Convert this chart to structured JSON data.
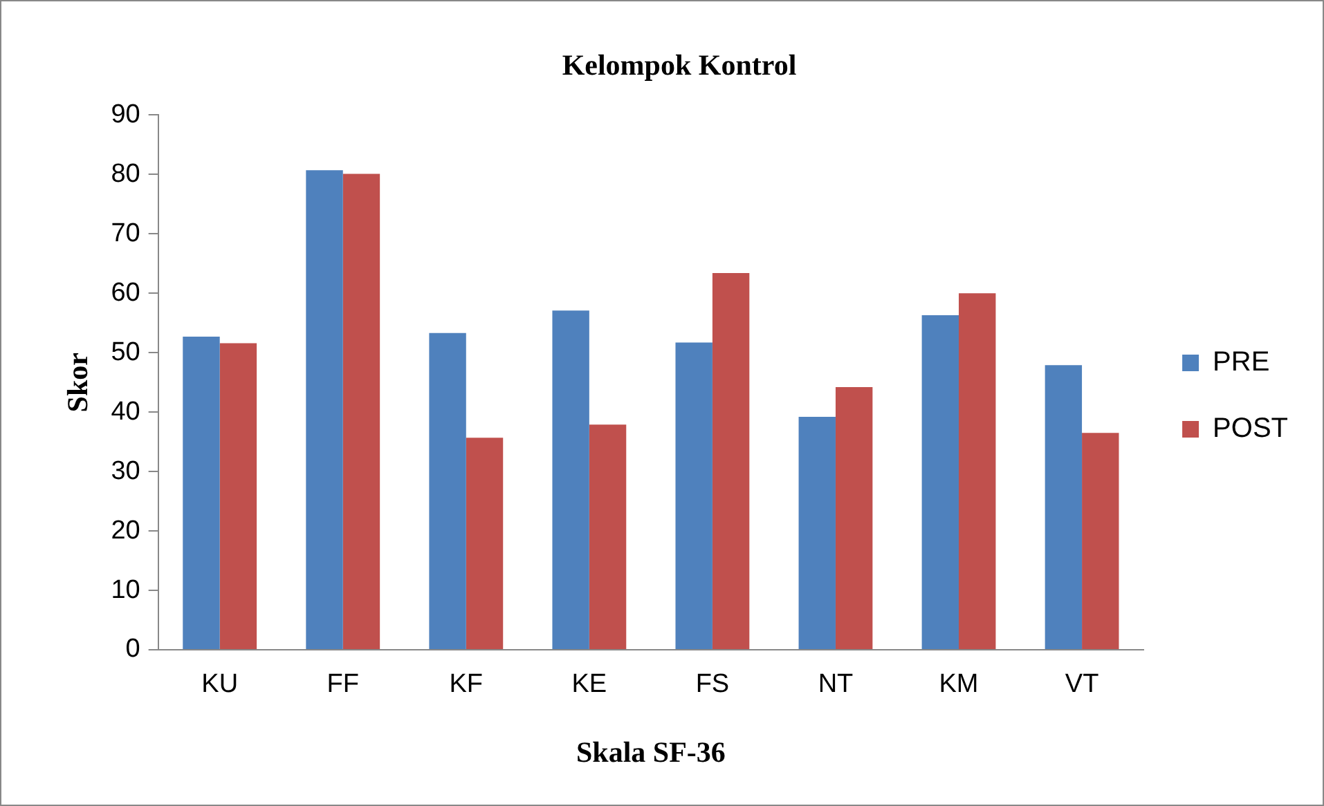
{
  "chart_data": {
    "type": "bar",
    "title": "Kelompok Kontrol",
    "xlabel": "Skala SF-36",
    "ylabel": "Skor",
    "categories": [
      "KU",
      "FF",
      "KF",
      "KE",
      "FS",
      "NT",
      "KM",
      "VT"
    ],
    "series": [
      {
        "name": "PRE",
        "color": "#4f81bd",
        "values": [
          52.7,
          80.7,
          53.3,
          57.1,
          51.7,
          39.2,
          56.3,
          47.9
        ]
      },
      {
        "name": "POST",
        "color": "#c0504d",
        "values": [
          51.6,
          80.1,
          35.7,
          37.9,
          63.4,
          44.2,
          60.0,
          36.5
        ]
      }
    ],
    "ylim": [
      0,
      90
    ],
    "yticks": [
      0,
      10,
      20,
      30,
      40,
      50,
      60,
      70,
      80,
      90
    ],
    "grid": false,
    "legend": "right"
  }
}
